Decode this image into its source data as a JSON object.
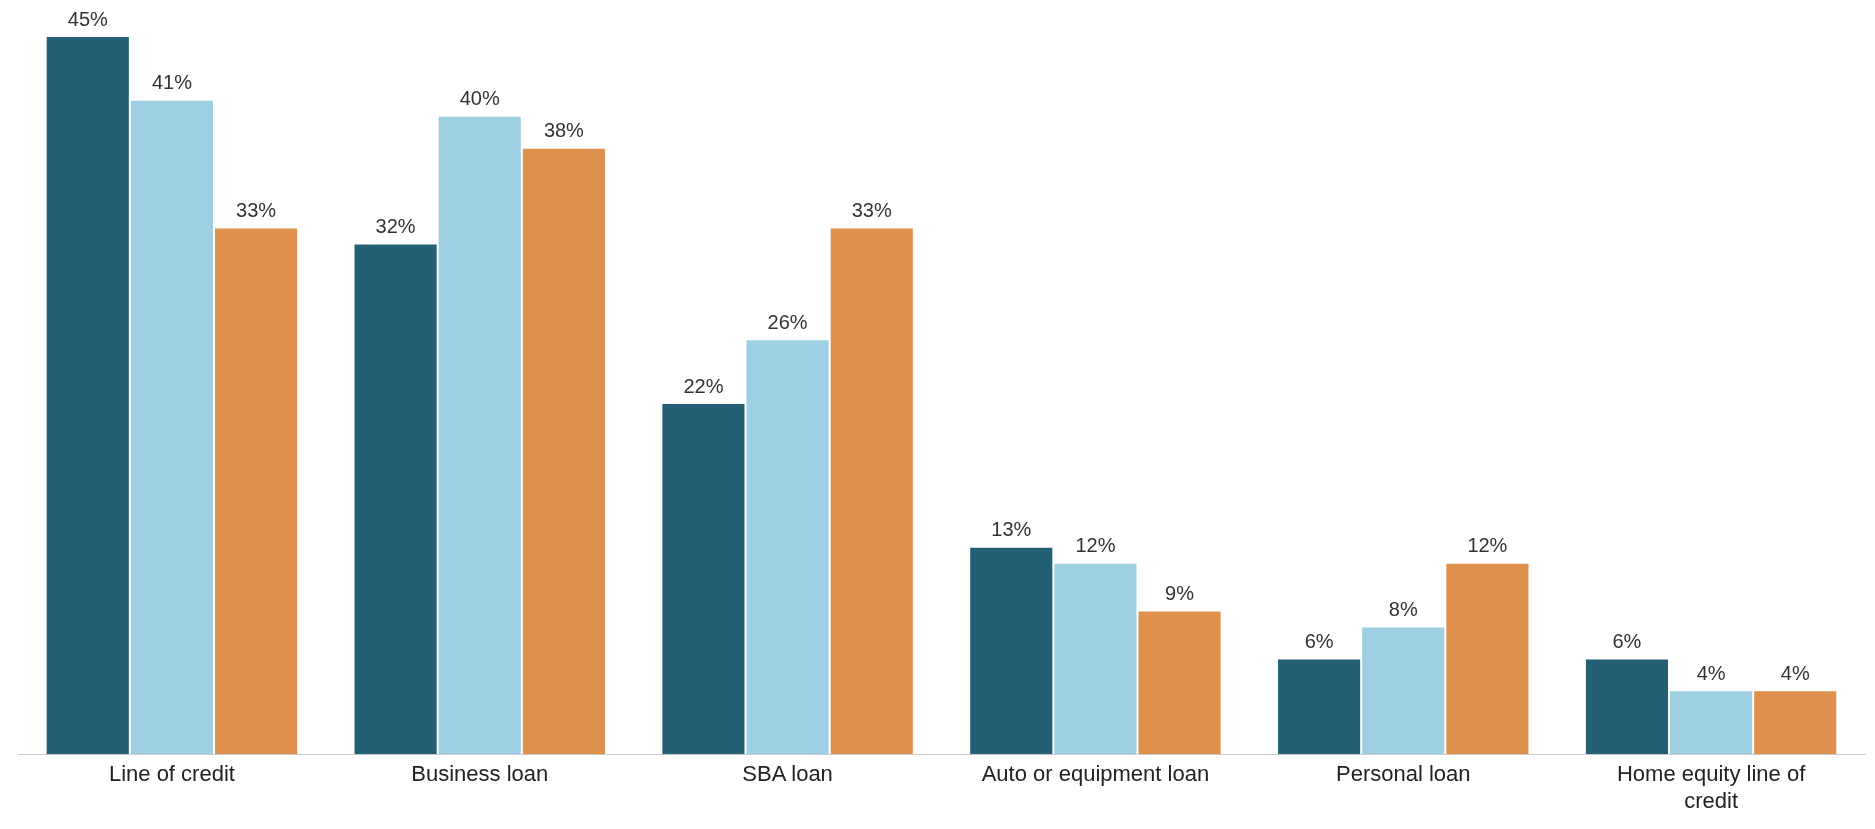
{
  "chart_data": {
    "type": "bar",
    "categories": [
      "Line of credit",
      "Business loan",
      "SBA loan",
      "Auto or equipment loan",
      "Personal loan",
      "Home equity line of credit"
    ],
    "series": [
      {
        "color": "#236076",
        "values": [
          45,
          32,
          22,
          13,
          6,
          6
        ],
        "value_labels": [
          "45%",
          "32%",
          "22%",
          "13%",
          "6%",
          "6%"
        ]
      },
      {
        "color": "#9ecfe2",
        "values": [
          41,
          40,
          26,
          12,
          8,
          4
        ],
        "value_labels": [
          "41%",
          "40%",
          "26%",
          "12%",
          "8%",
          "4%"
        ]
      },
      {
        "color": "#df904c",
        "values": [
          33,
          38,
          33,
          9,
          12,
          4
        ],
        "value_labels": [
          "33%",
          "38%",
          "33%",
          "9%",
          "12%",
          "4%"
        ]
      }
    ],
    "relative": false,
    "grid": false,
    "legend": false
  }
}
